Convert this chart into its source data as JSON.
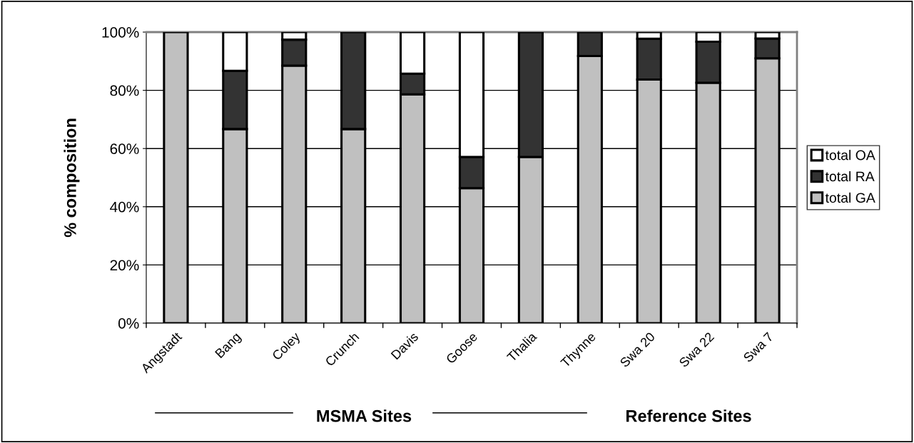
{
  "chart_data": {
    "type": "bar",
    "stacked": true,
    "ylabel": "% composition",
    "categories": [
      "Angstadt",
      "Bang",
      "Coley",
      "Crunch",
      "Davis",
      "Goose",
      "Thalia",
      "Thynne",
      "Swa 20",
      "Swa 22",
      "Swa 7"
    ],
    "series": [
      {
        "name": "total GA",
        "color": "#c0c0c0",
        "values": [
          100,
          66.7,
          88.5,
          66.7,
          78.6,
          46.4,
          57.1,
          91.8,
          83.7,
          82.6,
          91.0
        ]
      },
      {
        "name": "total RA",
        "color": "#333333",
        "values": [
          null,
          20.0,
          8.9,
          33.3,
          7.1,
          10.7,
          42.9,
          8.2,
          14.0,
          14.1,
          6.8
        ]
      },
      {
        "name": "total OA",
        "color": "#ffffff",
        "values": [
          null,
          13.3,
          2.6,
          null,
          14.3,
          42.9,
          null,
          null,
          2.3,
          3.3,
          2.2
        ]
      }
    ],
    "ylim": [
      0,
      100
    ],
    "yticks": [
      {
        "value": 0,
        "label": "0%"
      },
      {
        "value": 20,
        "label": "20%"
      },
      {
        "value": 40,
        "label": "40%"
      },
      {
        "value": 60,
        "label": "60%"
      },
      {
        "value": 80,
        "label": "80%"
      },
      {
        "value": 100,
        "label": "100%"
      }
    ],
    "grid": "y",
    "legend": "right",
    "annotations": [
      "MSMA Sites",
      "Reference Sites"
    ]
  }
}
